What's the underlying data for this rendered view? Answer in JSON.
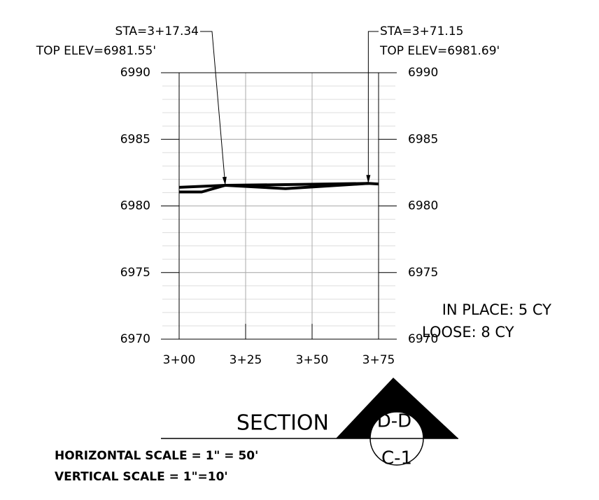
{
  "chart_data": {
    "type": "line",
    "xlim": [
      300,
      375
    ],
    "ylim": [
      6970,
      6990
    ],
    "xticks": [
      {
        "value": 300,
        "label": "3+00"
      },
      {
        "value": 325,
        "label": "3+25"
      },
      {
        "value": 350,
        "label": "3+50"
      },
      {
        "value": 375,
        "label": "3+75"
      }
    ],
    "yticks": [
      6970,
      6975,
      6980,
      6985,
      6990
    ],
    "grid": true,
    "minor_grid_step": 1,
    "series": [
      {
        "color": "#000000",
        "x": [
          300,
          317.34,
          340,
          371.15,
          375
        ],
        "values": [
          6981.4,
          6981.55,
          6981.6,
          6981.69,
          6981.65
        ]
      },
      {
        "color": "#000000",
        "x": [
          300,
          308.5,
          317.34,
          340,
          371.15
        ],
        "values": [
          6981.05,
          6981.05,
          6981.55,
          6981.3,
          6981.69
        ]
      }
    ],
    "annotations": [
      {
        "lines": [
          "STA=3+17.34",
          "TOP ELEV=6981.55'"
        ],
        "x": 317.34,
        "y": 6981.55
      },
      {
        "lines": [
          "STA=3+71.15",
          "TOP ELEV=6981.69'"
        ],
        "x": 371.15,
        "y": 6981.69
      }
    ],
    "volumes": [
      "IN PLACE: 5 CY",
      "LOOSE: 8 CY"
    ],
    "section_title": "SECTION",
    "section_id": "D-D'",
    "sheet": "C-1",
    "scales": [
      "HORIZONTAL SCALE = 1\" = 50'",
      "VERTICAL SCALE = 1\"=10'"
    ]
  }
}
